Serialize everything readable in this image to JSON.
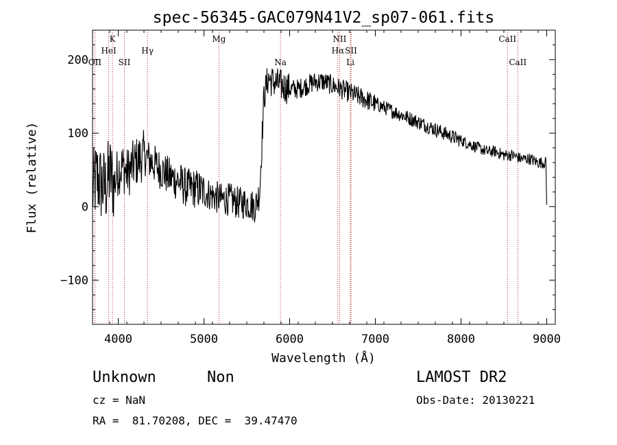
{
  "chart_data": {
    "type": "line",
    "title": "spec-56345-GAC079N41V2_sp07-061.fits",
    "xlabel": "Wavelength (Å)",
    "ylabel": "Flux (relative)",
    "xlim": [
      3700,
      9100
    ],
    "ylim": [
      -160,
      240
    ],
    "x_ticks": [
      4000,
      5000,
      6000,
      7000,
      8000,
      9000
    ],
    "y_ticks": [
      -100,
      0,
      100,
      200
    ],
    "grid": false,
    "line_color": "#000000",
    "marker_line_color": "#b22222",
    "series": [
      {
        "x": [
          3700,
          3750,
          3800,
          3850,
          3900,
          3950,
          4000,
          4050,
          4100,
          4200,
          4300,
          4400,
          4500,
          4600,
          4700,
          4800,
          4900,
          5000,
          5100,
          5200,
          5300,
          5400,
          5500,
          5600,
          5650,
          5700,
          5750,
          5800,
          5900,
          6000,
          6100,
          6200,
          6300,
          6400,
          6500,
          6600,
          6700,
          6800,
          6900,
          7000,
          7100,
          7200,
          7300,
          7400,
          7500,
          7600,
          7700,
          7800,
          7900,
          8000,
          8100,
          8200,
          8300,
          8400,
          8500,
          8600,
          8700,
          8800,
          8900,
          8990,
          9000
        ],
        "y": [
          20,
          40,
          30,
          25,
          45,
          30,
          50,
          55,
          45,
          60,
          70,
          60,
          50,
          40,
          35,
          25,
          25,
          20,
          15,
          10,
          10,
          5,
          5,
          0,
          20,
          150,
          175,
          170,
          165,
          160,
          160,
          165,
          170,
          170,
          165,
          160,
          155,
          150,
          145,
          140,
          135,
          130,
          125,
          120,
          115,
          110,
          105,
          100,
          95,
          90,
          85,
          80,
          75,
          75,
          70,
          70,
          65,
          65,
          60,
          60,
          0
        ]
      }
    ],
    "markers": [
      {
        "label": "OII",
        "x": 3727,
        "row": 3
      },
      {
        "label": "K",
        "x": 3933,
        "row": 0
      },
      {
        "label": "HeI",
        "x": 3889,
        "row": 1
      },
      {
        "label": "SII",
        "x": 4072,
        "row": 3
      },
      {
        "label": "Hγ",
        "x": 4341,
        "row": 1
      },
      {
        "label": "Mg",
        "x": 5175,
        "row": 0
      },
      {
        "label": "Na",
        "x": 5893,
        "row": 3
      },
      {
        "label": "NII",
        "x": 6583,
        "row": 0
      },
      {
        "label": "Hα",
        "x": 6563,
        "row": 1
      },
      {
        "label": "SII",
        "x": 6716,
        "row": 1
      },
      {
        "label": "Li",
        "x": 6708,
        "row": 3
      },
      {
        "label": "CaII",
        "x": 8542,
        "row": 0
      },
      {
        "label": "CaII",
        "x": 8662,
        "row": 3
      }
    ]
  },
  "info": {
    "class": "Unknown",
    "subclass": "Non",
    "survey": "LAMOST DR2",
    "cz": "cz = NaN",
    "obs_date": "Obs-Date: 20130221",
    "coords": "RA =  81.70208, DEC =  39.47470"
  }
}
